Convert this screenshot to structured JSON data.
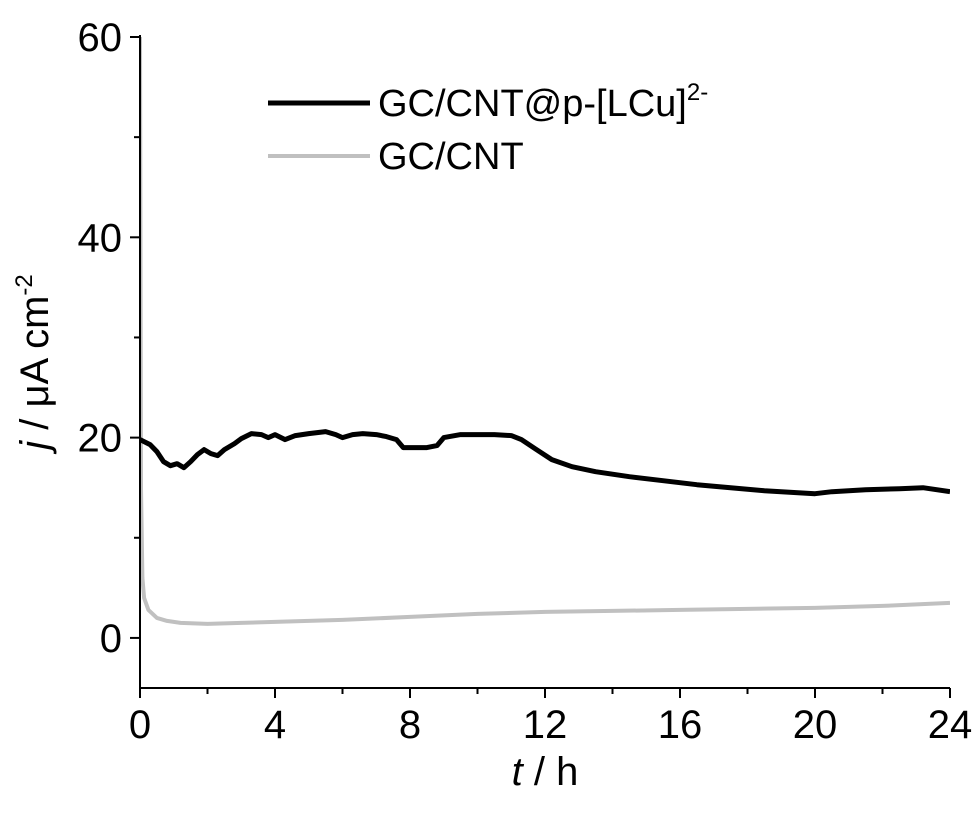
{
  "chart_data": {
    "type": "line",
    "xlabel": {
      "italic": "t",
      "rest": " / h"
    },
    "ylabel": {
      "italic": "j",
      "rest": " / μA cm",
      "sup": "-2"
    },
    "xlim": [
      0,
      24
    ],
    "ylim": [
      -5,
      60
    ],
    "xticks": [
      0,
      4,
      8,
      12,
      16,
      20,
      24
    ],
    "yticks": [
      0,
      20,
      40,
      60
    ],
    "grid": false,
    "legend_position": "top-center",
    "series": [
      {
        "name": "GC/CNT@p-[LCu]",
        "name_sup": "2-",
        "color": "#000000",
        "points": [
          [
            0,
            19.8
          ],
          [
            0.3,
            19.3
          ],
          [
            0.5,
            18.6
          ],
          [
            0.7,
            17.6
          ],
          [
            0.9,
            17.2
          ],
          [
            1.1,
            17.4
          ],
          [
            1.3,
            17.0
          ],
          [
            1.5,
            17.6
          ],
          [
            1.7,
            18.3
          ],
          [
            1.9,
            18.8
          ],
          [
            2.1,
            18.4
          ],
          [
            2.3,
            18.2
          ],
          [
            2.5,
            18.8
          ],
          [
            2.8,
            19.4
          ],
          [
            3.0,
            19.9
          ],
          [
            3.3,
            20.4
          ],
          [
            3.6,
            20.3
          ],
          [
            3.8,
            20.0
          ],
          [
            4.0,
            20.3
          ],
          [
            4.3,
            19.8
          ],
          [
            4.6,
            20.2
          ],
          [
            5.0,
            20.4
          ],
          [
            5.5,
            20.6
          ],
          [
            5.8,
            20.3
          ],
          [
            6.0,
            20.0
          ],
          [
            6.3,
            20.3
          ],
          [
            6.6,
            20.4
          ],
          [
            7.0,
            20.3
          ],
          [
            7.3,
            20.1
          ],
          [
            7.6,
            19.8
          ],
          [
            7.8,
            19.0
          ],
          [
            8.2,
            19.0
          ],
          [
            8.5,
            19.0
          ],
          [
            8.8,
            19.2
          ],
          [
            9.0,
            20.0
          ],
          [
            9.5,
            20.3
          ],
          [
            10.0,
            20.3
          ],
          [
            10.5,
            20.3
          ],
          [
            11.0,
            20.2
          ],
          [
            11.3,
            19.8
          ],
          [
            11.7,
            18.9
          ],
          [
            12.2,
            17.8
          ],
          [
            12.8,
            17.1
          ],
          [
            13.5,
            16.6
          ],
          [
            14.5,
            16.1
          ],
          [
            15.5,
            15.7
          ],
          [
            16.5,
            15.3
          ],
          [
            17.5,
            15.0
          ],
          [
            18.5,
            14.7
          ],
          [
            19.5,
            14.5
          ],
          [
            20.0,
            14.4
          ],
          [
            20.5,
            14.6
          ],
          [
            21.5,
            14.8
          ],
          [
            22.5,
            14.9
          ],
          [
            23.2,
            15.0
          ],
          [
            24.0,
            14.6
          ]
        ]
      },
      {
        "name": "GC/CNT",
        "name_sup": "",
        "color": "#c0c0c0",
        "points": [
          [
            0,
            60
          ],
          [
            0.03,
            15
          ],
          [
            0.07,
            6
          ],
          [
            0.12,
            4.0
          ],
          [
            0.25,
            2.8
          ],
          [
            0.5,
            2.0
          ],
          [
            0.8,
            1.7
          ],
          [
            1.2,
            1.5
          ],
          [
            2.0,
            1.4
          ],
          [
            3.0,
            1.5
          ],
          [
            4.0,
            1.6
          ],
          [
            6.0,
            1.8
          ],
          [
            8.0,
            2.1
          ],
          [
            10.0,
            2.4
          ],
          [
            12.0,
            2.6
          ],
          [
            14.0,
            2.7
          ],
          [
            16.0,
            2.8
          ],
          [
            18.0,
            2.9
          ],
          [
            20.0,
            3.0
          ],
          [
            22.0,
            3.2
          ],
          [
            24.0,
            3.5
          ]
        ]
      }
    ]
  }
}
